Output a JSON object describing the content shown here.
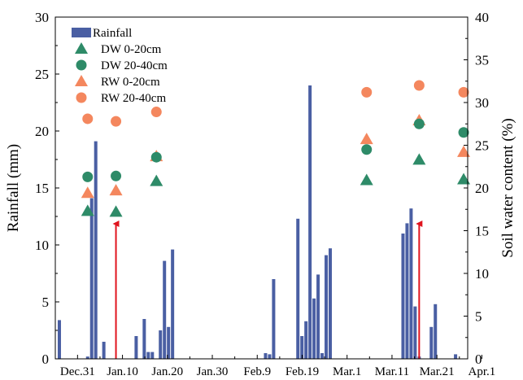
{
  "chart_data": {
    "type": "bar+scatter",
    "x_axis": {
      "ticks": [
        "Dec.31",
        "Jan.10",
        "Jan.20",
        "Jan.30",
        "Feb.9",
        "Feb.19",
        "Mar.1",
        "Mar.11",
        "Mar.21",
        "Apr.1"
      ],
      "range_days": [
        -5,
        97
      ]
    },
    "y_left": {
      "label": "Rainfall (mm)",
      "range": [
        0,
        30
      ],
      "ticks": [
        0,
        5,
        10,
        15,
        20,
        25,
        30
      ]
    },
    "y_right": {
      "label": "Soil water content (%)",
      "range": [
        0,
        40
      ],
      "ticks": [
        0,
        5,
        10,
        15,
        20,
        25,
        30,
        35,
        40
      ]
    },
    "legend": {
      "placement": "top-left",
      "entries": [
        {
          "label": "Rainfall",
          "key": "rainfall"
        },
        {
          "label": "DW 0-20cm",
          "key": "dw_0_20"
        },
        {
          "label": "DW 20-40cm",
          "key": "dw_20_40"
        },
        {
          "label": "RW 0-20cm",
          "key": "rw_0_20"
        },
        {
          "label": "RW 20-40cm",
          "key": "rw_20_40"
        }
      ]
    },
    "colors": {
      "rainfall": "#4a5fa3",
      "dw": "#2e8b68",
      "rw": "#f4875e",
      "arrow": "#e0141e"
    },
    "rainfall": {
      "days": [
        -4,
        3,
        4,
        5,
        7,
        15,
        17,
        18,
        19,
        21,
        22,
        23,
        24,
        47,
        48,
        49,
        55,
        56,
        57,
        58,
        59,
        60,
        61,
        62,
        63,
        81,
        82,
        83,
        84,
        85,
        88,
        89,
        94
      ],
      "values": [
        3.4,
        0.2,
        14.1,
        19.1,
        1.5,
        2.0,
        3.5,
        0.6,
        0.6,
        2.5,
        8.6,
        2.8,
        9.6,
        0.5,
        0.4,
        7.0,
        12.3,
        2.0,
        3.3,
        24.0,
        5.3,
        7.4,
        0.5,
        9.1,
        9.7,
        11.0,
        11.9,
        13.2,
        4.6,
        0.2,
        2.8,
        4.8,
        0.4
      ]
    },
    "irrigation_arrows_days": [
      10,
      85
    ],
    "soil_water": {
      "days": [
        3,
        10,
        20,
        72,
        85,
        96
      ],
      "dw_0_20": [
        17.3,
        17.2,
        20.8,
        20.9,
        23.3,
        21.0
      ],
      "dw_20_40": [
        21.3,
        21.4,
        23.6,
        24.5,
        27.5,
        26.5
      ],
      "rw_0_20": [
        19.4,
        19.7,
        23.7,
        25.7,
        27.9,
        24.2
      ],
      "rw_20_40": [
        28.1,
        27.8,
        28.9,
        31.2,
        32.0,
        31.2
      ]
    }
  }
}
